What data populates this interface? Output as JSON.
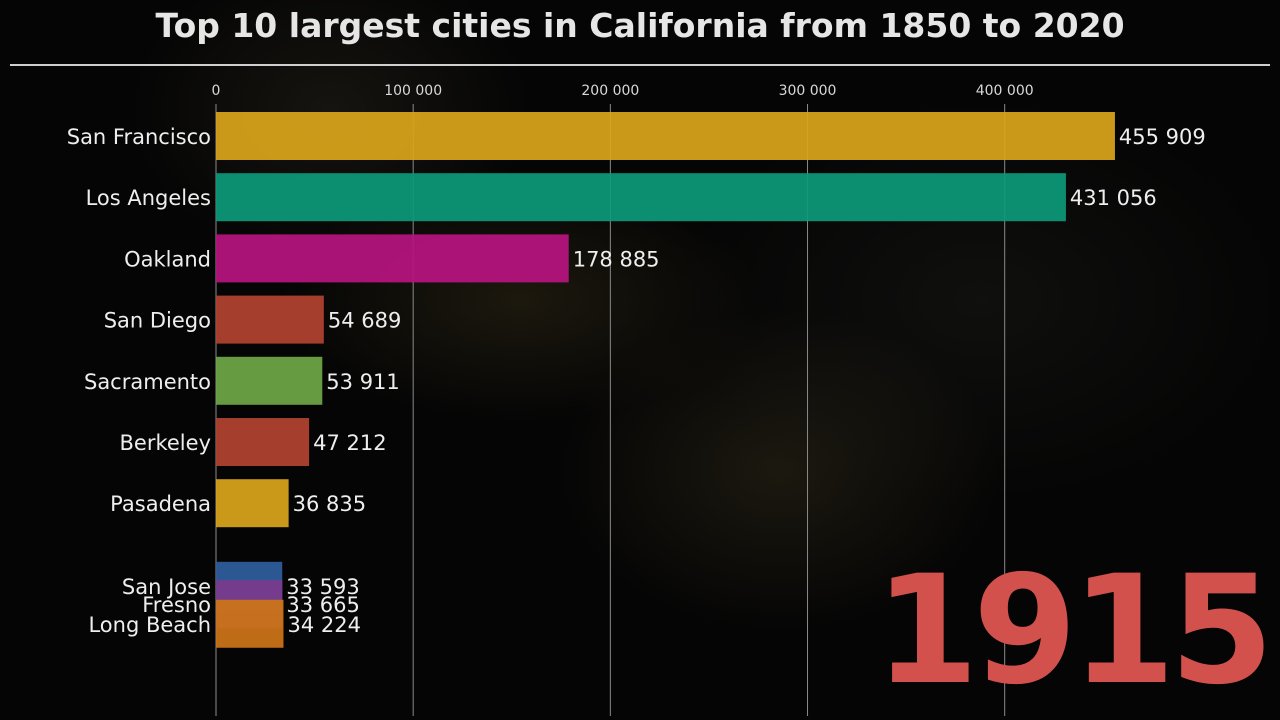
{
  "chart_data": {
    "type": "bar",
    "orientation": "horizontal",
    "title": "Top 10 largest cities in California from 1850 to 2020",
    "current_year": "1915",
    "xlim": [
      0,
      460000
    ],
    "x_ticks": [
      {
        "value": 0,
        "label": "0"
      },
      {
        "value": 100000,
        "label": "100 000"
      },
      {
        "value": 200000,
        "label": "200 000"
      },
      {
        "value": 300000,
        "label": "300 000"
      },
      {
        "value": 400000,
        "label": "400 000"
      }
    ],
    "grid": true,
    "bars": [
      {
        "name": "San Francisco",
        "value": 455909,
        "label": "455 909",
        "color": "#d9a51b",
        "rank": 1
      },
      {
        "name": "Los Angeles",
        "value": 431056,
        "label": "431 056",
        "color": "#0d9a7a",
        "rank": 2
      },
      {
        "name": "Oakland",
        "value": 178885,
        "label": "178 885",
        "color": "#b7147f",
        "rank": 3
      },
      {
        "name": "San Diego",
        "value": 54689,
        "label": "54 689",
        "color": "#b2432f",
        "rank": 4
      },
      {
        "name": "Sacramento",
        "value": 53911,
        "label": "53 911",
        "color": "#6ea747",
        "rank": 5
      },
      {
        "name": "Berkeley",
        "value": 47212,
        "label": "47 212",
        "color": "#b2432f",
        "rank": 6
      },
      {
        "name": "Pasadena",
        "value": 36835,
        "label": "36 835",
        "color": "#d9a51b",
        "rank": 7
      },
      {
        "name": "San Jose",
        "value": 33593,
        "label": "33 593",
        "color": "#2e5f9e",
        "rank": 8.35
      },
      {
        "name": "Fresno",
        "value": 33665,
        "label": "33 665",
        "color": "#7b3a8e",
        "rank": 8.65
      },
      {
        "name": "Long Beach",
        "value": 34224,
        "label": "34 224",
        "color": "#cc7418",
        "rank": 8.97
      }
    ]
  }
}
